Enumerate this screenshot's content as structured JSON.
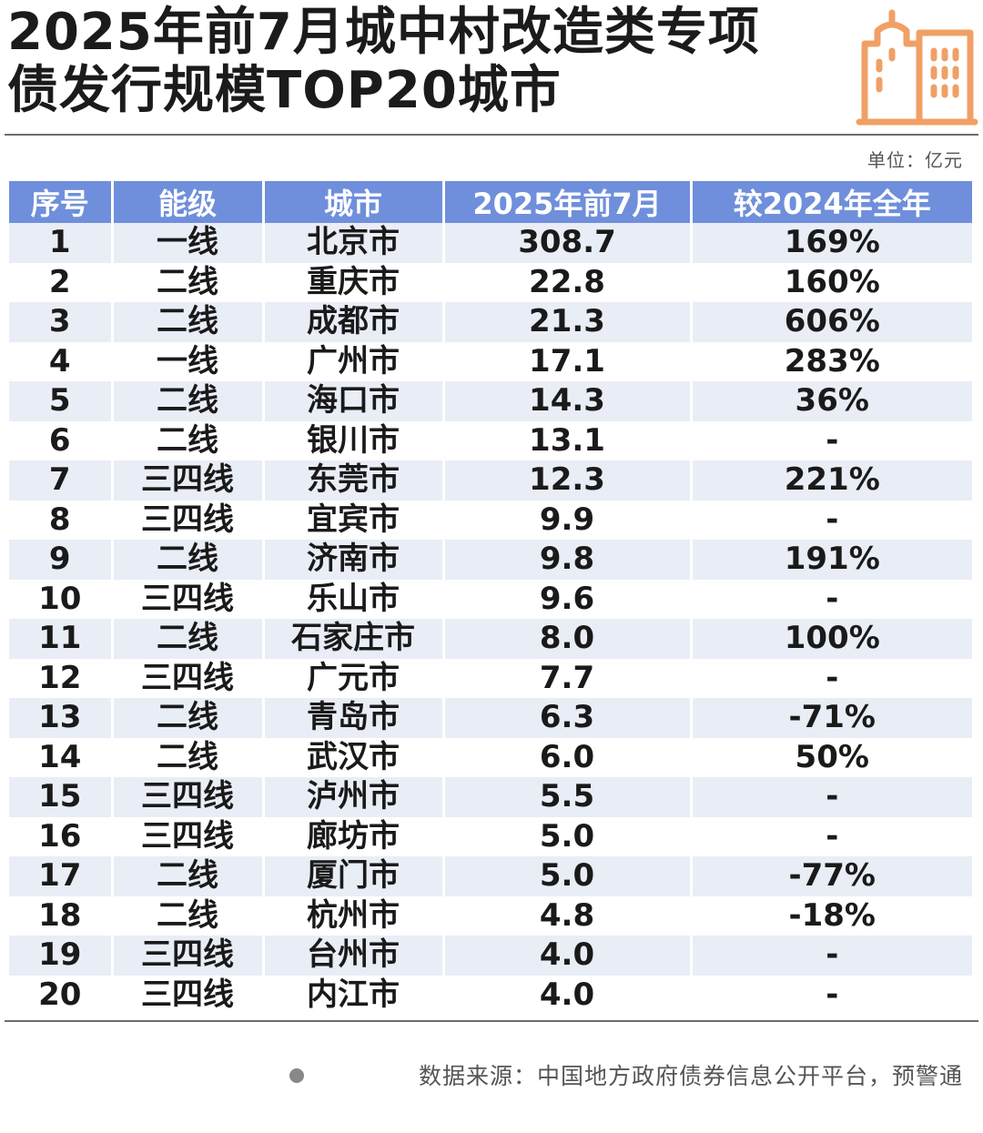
{
  "title": {
    "line1": "2025年前7月城中村改造类专项",
    "line2": "债发行规模TOP20城市"
  },
  "unit_label": "单位：",
  "unit_value": "亿元",
  "logo_icon": "city-buildings-icon",
  "colors": {
    "header_bg": "#6f8fdc",
    "stripe": "#e9edf6",
    "logo": "#f0a066"
  },
  "chart_data": {
    "type": "table",
    "columns": [
      "序号",
      "能级",
      "城市",
      "2025年前7月",
      "较2024年全年"
    ],
    "rows": [
      [
        "1",
        "一线",
        "北京市",
        "308.7",
        "169%"
      ],
      [
        "2",
        "二线",
        "重庆市",
        "22.8",
        "160%"
      ],
      [
        "3",
        "二线",
        "成都市",
        "21.3",
        "606%"
      ],
      [
        "4",
        "一线",
        "广州市",
        "17.1",
        "283%"
      ],
      [
        "5",
        "二线",
        "海口市",
        "14.3",
        "36%"
      ],
      [
        "6",
        "二线",
        "银川市",
        "13.1",
        "-"
      ],
      [
        "7",
        "三四线",
        "东莞市",
        "12.3",
        "221%"
      ],
      [
        "8",
        "三四线",
        "宜宾市",
        "9.9",
        "-"
      ],
      [
        "9",
        "二线",
        "济南市",
        "9.8",
        "191%"
      ],
      [
        "10",
        "三四线",
        "乐山市",
        "9.6",
        "-"
      ],
      [
        "11",
        "二线",
        "石家庄市",
        "8.0",
        "100%"
      ],
      [
        "12",
        "三四线",
        "广元市",
        "7.7",
        "-"
      ],
      [
        "13",
        "二线",
        "青岛市",
        "6.3",
        "-71%"
      ],
      [
        "14",
        "二线",
        "武汉市",
        "6.0",
        "50%"
      ],
      [
        "15",
        "三四线",
        "泸州市",
        "5.5",
        "-"
      ],
      [
        "16",
        "三四线",
        "廊坊市",
        "5.0",
        "-"
      ],
      [
        "17",
        "二线",
        "厦门市",
        "5.0",
        "-77%"
      ],
      [
        "18",
        "二线",
        "杭州市",
        "4.8",
        "-18%"
      ],
      [
        "19",
        "三四线",
        "台州市",
        "4.0",
        "-"
      ],
      [
        "20",
        "三四线",
        "内江市",
        "4.0",
        "-"
      ]
    ]
  },
  "source": "数据来源：中国地方政府债券信息公开平台，预警通"
}
